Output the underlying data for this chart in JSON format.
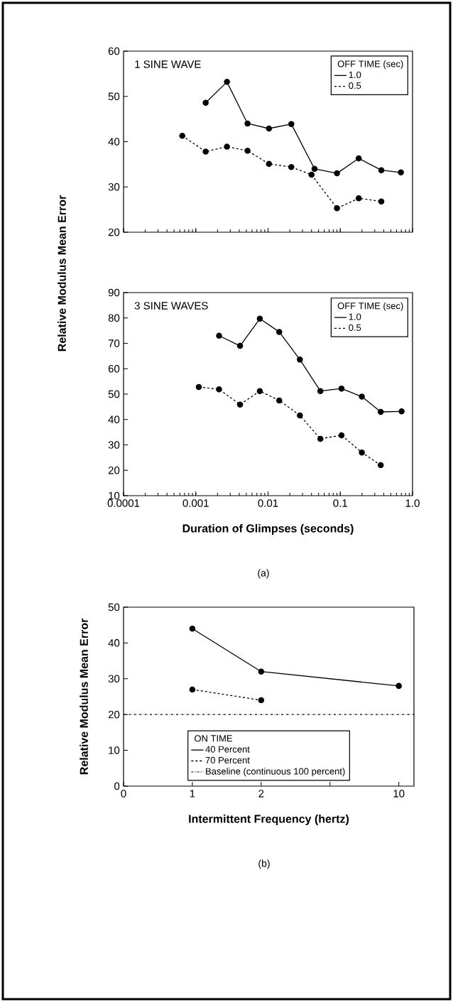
{
  "chart_data": [
    {
      "type": "line",
      "ylabel": "Relative Modulus Mean Error",
      "log": "x",
      "xlim": [
        0.0001,
        1
      ],
      "ylim": [
        20,
        60
      ],
      "xticks": [
        0.0001,
        0.001,
        0.01,
        0.1,
        1
      ],
      "yticks": [
        20,
        30,
        40,
        50,
        60
      ],
      "tick_labels": "y",
      "legend": "top right",
      "legend_title": "OFF TIME (sec)",
      "marker": "circle",
      "annotations": [
        "1 SINE WAVE"
      ],
      "series": [
        {
          "name": "1.0",
          "color": "#000000",
          "line_style": "solid",
          "x": [
            0.00137,
            0.0027,
            0.0052,
            0.0103,
            0.021,
            0.044,
            0.09,
            0.18,
            0.37,
            0.69
          ],
          "values": [
            48.6,
            53.2,
            44.0,
            42.9,
            43.9,
            34.0,
            33.0,
            36.3,
            33.7,
            33.2
          ]
        },
        {
          "name": "0.5",
          "color": "#000000",
          "line_style": "dashed",
          "x": [
            0.00065,
            0.00137,
            0.0027,
            0.0052,
            0.0103,
            0.021,
            0.04,
            0.09,
            0.18,
            0.37
          ],
          "values": [
            41.3,
            37.8,
            38.9,
            38.0,
            35.1,
            34.4,
            32.7,
            25.3,
            27.5,
            26.8
          ]
        }
      ]
    },
    {
      "type": "line",
      "xlabel": "Duration of Glimpses (seconds)",
      "log": "x",
      "xlim": [
        0.0001,
        1
      ],
      "ylim": [
        10,
        90
      ],
      "xticks": [
        0.0001,
        0.001,
        0.01,
        0.1,
        {
          "value": 1,
          "label": "1.0"
        }
      ],
      "yticks": [
        10,
        20,
        30,
        40,
        50,
        60,
        70,
        80,
        90
      ],
      "legend": "top right",
      "legend_title": "OFF TIME (sec)",
      "marker": "circle",
      "annotations": [
        "3 SINE WAVES",
        "(a)"
      ],
      "series": [
        {
          "name": "1.0",
          "color": "#000000",
          "line_style": "solid",
          "x": [
            0.0021,
            0.0041,
            0.0077,
            0.0143,
            0.0276,
            0.053,
            0.104,
            0.199,
            0.363,
            0.706
          ],
          "values": [
            73.0,
            69.0,
            79.7,
            74.5,
            63.6,
            51.2,
            52.2,
            49.0,
            43.0,
            43.2
          ]
        },
        {
          "name": "0.5",
          "color": "#000000",
          "line_style": "dashed",
          "x": [
            0.0011,
            0.0021,
            0.0041,
            0.0077,
            0.0143,
            0.0276,
            0.053,
            0.104,
            0.199,
            0.363
          ],
          "values": [
            52.8,
            51.9,
            45.9,
            51.2,
            47.5,
            41.6,
            32.4,
            33.8,
            27.0,
            22.0
          ]
        }
      ]
    },
    {
      "type": "line",
      "xlabel": "Intermittent Frequency (hertz)",
      "ylabel": "Relative Modulus Mean Error",
      "categories": [
        "0",
        "1",
        "2",
        null,
        "10"
      ],
      "ylim": [
        0,
        50
      ],
      "yticks": [
        0,
        10,
        20,
        30,
        40,
        50
      ],
      "legend": "bottom",
      "legend_title": "ON TIME",
      "marker": "circle",
      "annotations": [
        "(b)"
      ],
      "series": [
        {
          "name": "40 Percent",
          "color": "#000000",
          "line_style": "solid",
          "values": [
            null,
            44,
            32,
            null,
            28
          ]
        },
        {
          "name": "70 Percent",
          "color": "#000000",
          "line_style": "dashed",
          "values": [
            null,
            27,
            24,
            null,
            null
          ]
        }
      ],
      "ref_lines": [
        {
          "axis": "y",
          "value": 20,
          "label": "Baseline (continuous 100 percent)",
          "color": "#000000",
          "line_style": "dashdot"
        }
      ]
    }
  ]
}
